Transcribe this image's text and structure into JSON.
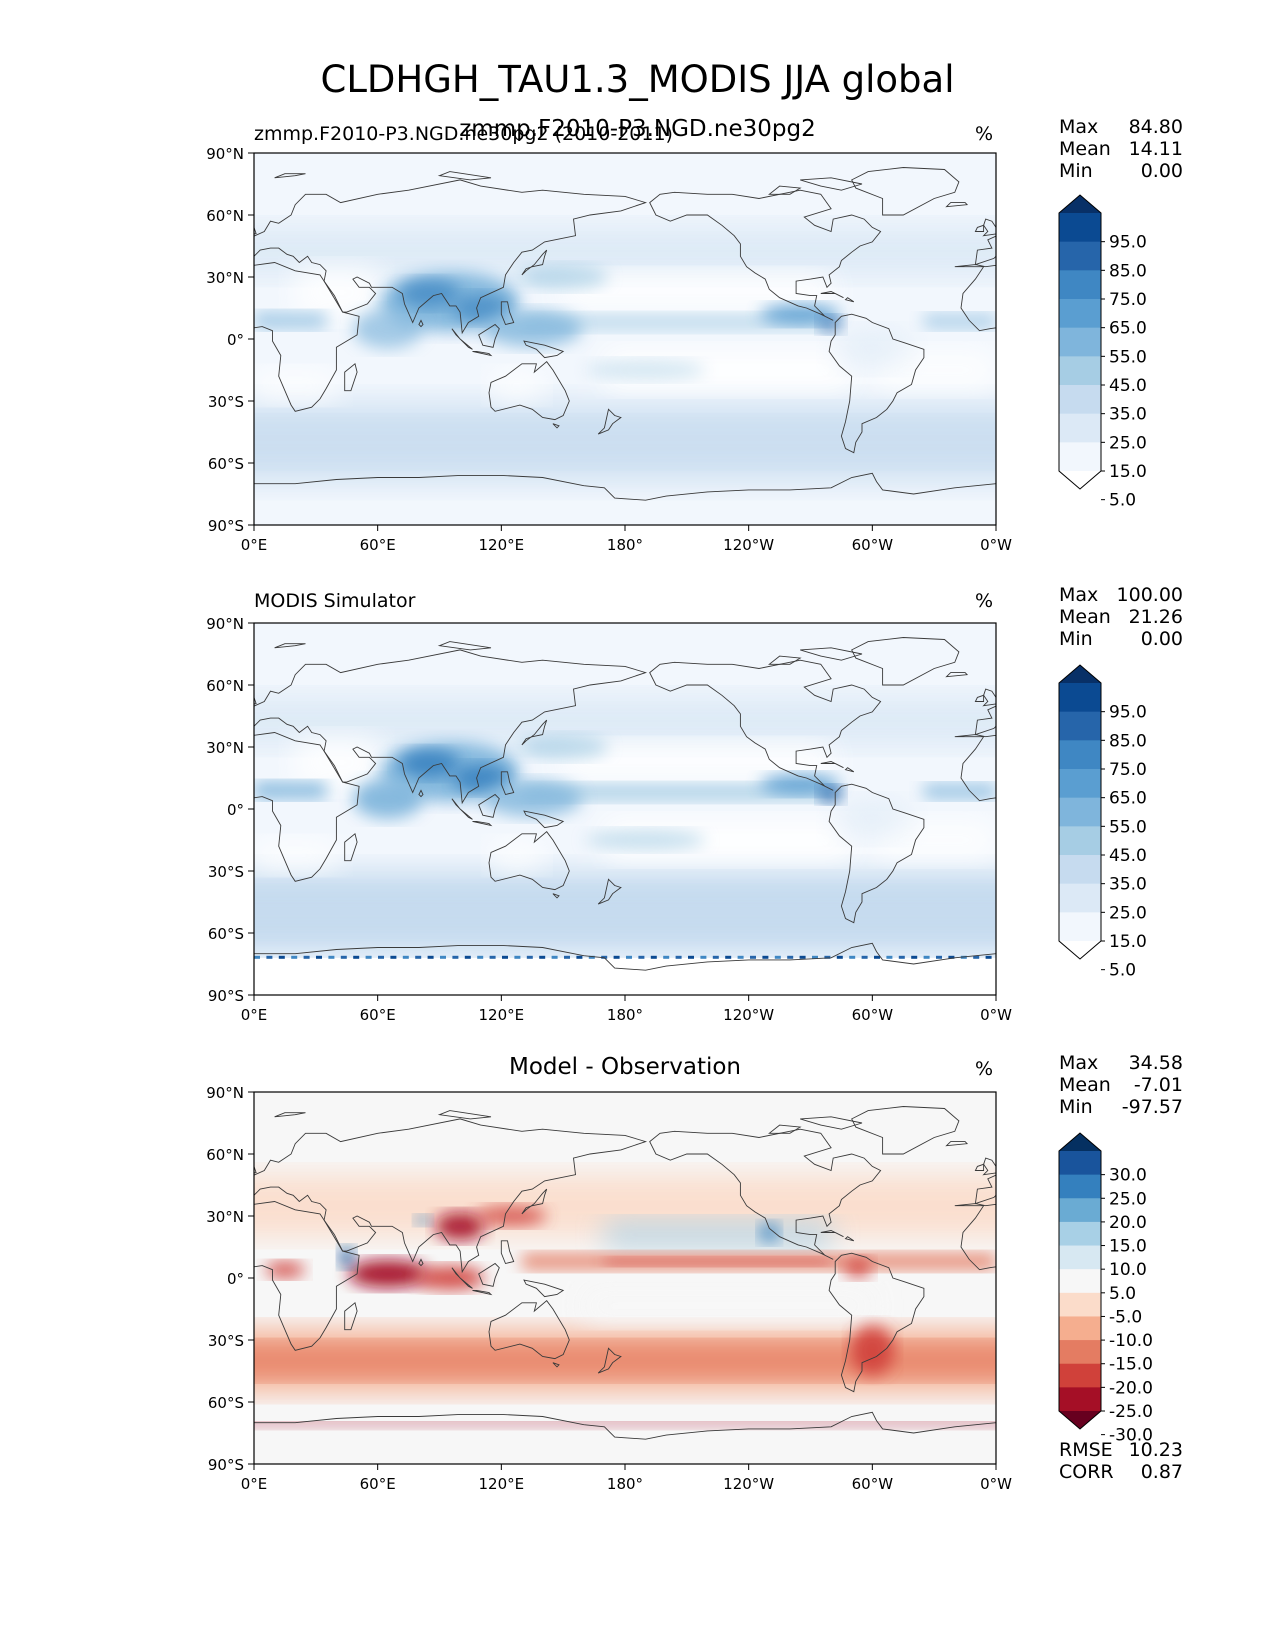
{
  "figure": {
    "title": "CLDHGH_TAU1.3_MODIS JJA global",
    "overlapping_text": "zmmp.F2010-P3.NGD.ne30pg2",
    "colors": {
      "land_outline": "#3a3a3a",
      "blues": [
        "#ffffff",
        "#f2f7fd",
        "#dce9f6",
        "#c6dbef",
        "#a6cde4",
        "#7fb5dc",
        "#5a9ed1",
        "#3f87c3",
        "#2665aa",
        "#0b4a92",
        "#083067"
      ],
      "diverging": [
        "#67001f",
        "#a50f26",
        "#d0413a",
        "#e47c62",
        "#f5ae8f",
        "#fbdcca",
        "#f7f7f7",
        "#d7e8f2",
        "#a8d0e6",
        "#6aabd3",
        "#3480be",
        "#19549c",
        "#053061"
      ]
    }
  },
  "axes": {
    "lat_ticks": [
      "90°N",
      "60°N",
      "30°N",
      "0°",
      "30°S",
      "60°S",
      "90°S"
    ],
    "lon_ticks": [
      "0°E",
      "60°E",
      "120°E",
      "180°",
      "120°W",
      "60°W",
      "0°W"
    ]
  },
  "panels": [
    {
      "id": "test",
      "left_label": "zmmp.F2010-P3.NGD.ne30pg2 (2010-2011)",
      "center_label": "",
      "units": "%",
      "stats": [
        {
          "label": "Max",
          "value": "84.80"
        },
        {
          "label": "Mean",
          "value": "14.11"
        },
        {
          "label": "Min",
          "value": "0.00"
        }
      ],
      "colorbar": {
        "palette": "blues",
        "labels": [
          "95.0",
          "85.0",
          "75.0",
          "65.0",
          "55.0",
          "45.0",
          "35.0",
          "25.0",
          "15.0",
          "5.0"
        ],
        "extend": "both"
      },
      "footer_stats": []
    },
    {
      "id": "reference",
      "left_label": "MODIS Simulator",
      "center_label": "",
      "units": "%",
      "stats": [
        {
          "label": "Max",
          "value": "100.00"
        },
        {
          "label": "Mean",
          "value": "21.26"
        },
        {
          "label": "Min",
          "value": "0.00"
        }
      ],
      "colorbar": {
        "palette": "blues",
        "labels": [
          "95.0",
          "85.0",
          "75.0",
          "65.0",
          "55.0",
          "45.0",
          "35.0",
          "25.0",
          "15.0",
          "5.0"
        ],
        "extend": "both"
      },
      "footer_stats": []
    },
    {
      "id": "difference",
      "left_label": "",
      "center_label": "Model - Observation",
      "units": "%",
      "stats": [
        {
          "label": "Max",
          "value": "34.58"
        },
        {
          "label": "Mean",
          "value": "-7.01"
        },
        {
          "label": "Min",
          "value": "-97.57"
        }
      ],
      "colorbar": {
        "palette": "diverging",
        "labels": [
          "30.0",
          "25.0",
          "20.0",
          "15.0",
          "10.0",
          "5.0",
          "-5.0",
          "-10.0",
          "-15.0",
          "-20.0",
          "-25.0",
          "-30.0"
        ],
        "extend": "both"
      },
      "footer_stats": [
        {
          "label": "RMSE",
          "value": "10.23"
        },
        {
          "label": "CORR",
          "value": "0.87"
        }
      ]
    }
  ]
}
